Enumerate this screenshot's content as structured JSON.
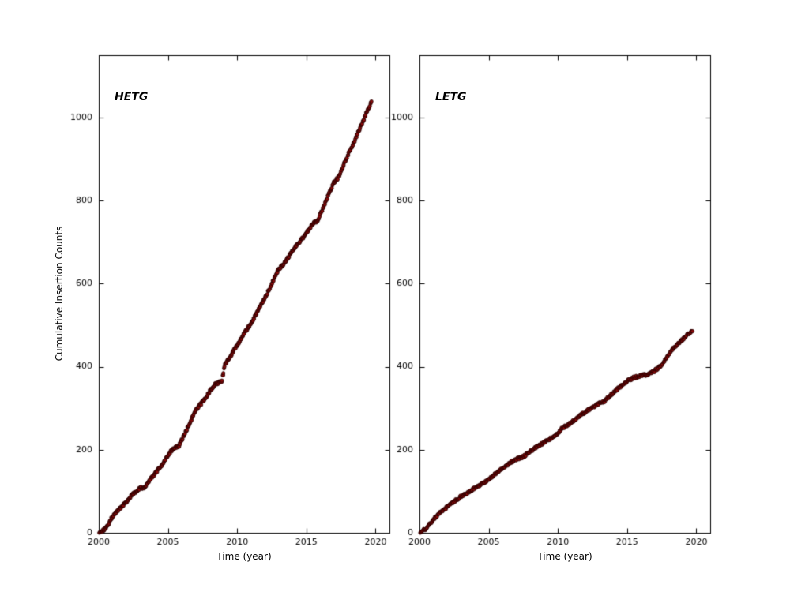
{
  "figure": {
    "background": "#ffffff",
    "frame_color": "#000000",
    "text_color": "#000000"
  },
  "chart_data": [
    {
      "type": "scatter",
      "title": "HETG",
      "xlabel": "Time (year)",
      "ylabel": "Cumulative Insertion Counts",
      "xlim": [
        2000,
        2021
      ],
      "ylim": [
        0,
        1150
      ],
      "xticks": [
        2000,
        2005,
        2010,
        2015,
        2020
      ],
      "yticks": [
        0,
        200,
        400,
        600,
        800,
        1000
      ],
      "grid": false,
      "legend": "none",
      "marker_color": "#8b0b0b",
      "marker_edge_color": "#250000",
      "n_points": 560,
      "series": [
        {
          "name": "HETG cumulative insertions",
          "anchors": [
            [
              2000.0,
              0
            ],
            [
              2000.3,
              5
            ],
            [
              2000.6,
              15
            ],
            [
              2001.0,
              40
            ],
            [
              2001.5,
              58
            ],
            [
              2002.0,
              75
            ],
            [
              2002.5,
              95
            ],
            [
              2003.0,
              108
            ],
            [
              2003.3,
              110
            ],
            [
              2004.0,
              140
            ],
            [
              2004.5,
              160
            ],
            [
              2005.0,
              185
            ],
            [
              2005.3,
              200
            ],
            [
              2005.8,
              210
            ],
            [
              2006.3,
              245
            ],
            [
              2007.0,
              295
            ],
            [
              2007.5,
              315
            ],
            [
              2008.0,
              340
            ],
            [
              2008.4,
              358
            ],
            [
              2008.9,
              365
            ],
            [
              2009.1,
              405
            ],
            [
              2009.6,
              430
            ],
            [
              2010.0,
              452
            ],
            [
              2010.5,
              480
            ],
            [
              2011.0,
              505
            ],
            [
              2011.5,
              535
            ],
            [
              2012.0,
              565
            ],
            [
              2012.5,
              600
            ],
            [
              2013.0,
              635
            ],
            [
              2013.4,
              648
            ],
            [
              2014.0,
              680
            ],
            [
              2014.5,
              700
            ],
            [
              2015.0,
              722
            ],
            [
              2015.5,
              745
            ],
            [
              2015.8,
              752
            ],
            [
              2016.3,
              790
            ],
            [
              2017.0,
              845
            ],
            [
              2017.3,
              855
            ],
            [
              2018.0,
              910
            ],
            [
              2018.5,
              945
            ],
            [
              2019.0,
              985
            ],
            [
              2019.4,
              1015
            ],
            [
              2019.7,
              1038
            ]
          ]
        }
      ]
    },
    {
      "type": "scatter",
      "title": "LETG",
      "xlabel": "Time (year)",
      "ylabel": "",
      "xlim": [
        2000,
        2021
      ],
      "ylim": [
        0,
        1150
      ],
      "xticks": [
        2000,
        2005,
        2010,
        2015,
        2020
      ],
      "yticks": [
        0,
        200,
        400,
        600,
        800,
        1000
      ],
      "grid": false,
      "legend": "none",
      "marker_color": "#8b0b0b",
      "marker_edge_color": "#250000",
      "n_points": 470,
      "series": [
        {
          "name": "LETG cumulative insertions",
          "anchors": [
            [
              2000.0,
              0
            ],
            [
              2000.4,
              8
            ],
            [
              2001.0,
              32
            ],
            [
              2001.5,
              48
            ],
            [
              2002.0,
              62
            ],
            [
              2002.5,
              75
            ],
            [
              2003.0,
              88
            ],
            [
              2003.5,
              97
            ],
            [
              2004.0,
              108
            ],
            [
              2004.5,
              118
            ],
            [
              2005.0,
              128
            ],
            [
              2005.5,
              142
            ],
            [
              2006.0,
              155
            ],
            [
              2006.5,
              168
            ],
            [
              2007.0,
              178
            ],
            [
              2007.5,
              183
            ],
            [
              2008.0,
              196
            ],
            [
              2008.5,
              207
            ],
            [
              2009.0,
              218
            ],
            [
              2009.5,
              228
            ],
            [
              2010.0,
              238
            ],
            [
              2010.3,
              252
            ],
            [
              2010.8,
              262
            ],
            [
              2011.2,
              272
            ],
            [
              2011.6,
              282
            ],
            [
              2012.0,
              292
            ],
            [
              2012.4,
              300
            ],
            [
              2013.0,
              312
            ],
            [
              2013.3,
              315
            ],
            [
              2014.0,
              338
            ],
            [
              2014.5,
              352
            ],
            [
              2015.0,
              365
            ],
            [
              2015.4,
              373
            ],
            [
              2016.0,
              378
            ],
            [
              2016.5,
              382
            ],
            [
              2017.0,
              390
            ],
            [
              2017.5,
              405
            ],
            [
              2018.0,
              428
            ],
            [
              2018.4,
              448
            ],
            [
              2018.8,
              458
            ],
            [
              2019.2,
              472
            ],
            [
              2019.5,
              482
            ],
            [
              2019.7,
              488
            ]
          ]
        }
      ]
    }
  ]
}
